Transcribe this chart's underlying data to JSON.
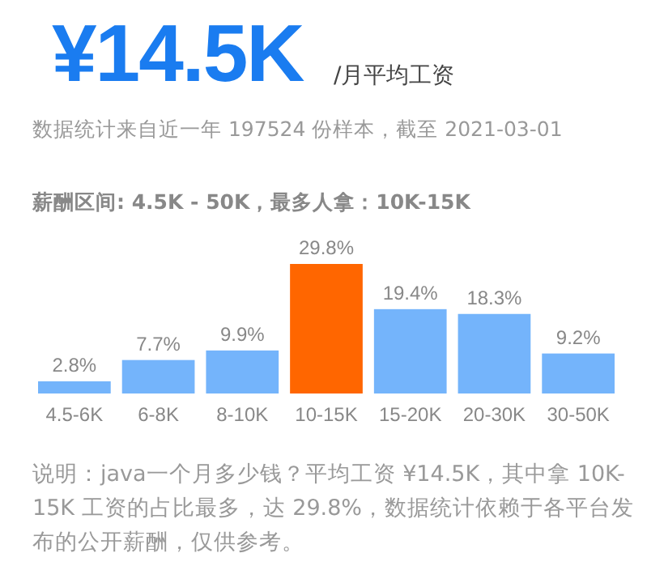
{
  "chart_data": {
    "type": "bar",
    "title": "¥14.5K",
    "subtitle": "/月平均工资",
    "annotations": [
      "数据统计来自近一年 197524 份样本，截至 2021-03-01",
      "薪酬区间: 4.5K - 50K，最多人拿：10K-15K",
      "说明：java一个月多少钱？平均工资 ¥14.5K，其中拿 10K-15K 工资的占比最多，达 29.8%，数据统计依赖于各平台发布的公开薪酬，仅供参考。"
    ],
    "categories": [
      "4.5-6K",
      "6-8K",
      "8-10K",
      "10-15K",
      "15-20K",
      "20-30K",
      "30-50K"
    ],
    "values": [
      2.8,
      7.7,
      9.9,
      29.8,
      19.4,
      18.3,
      9.2
    ],
    "value_labels": [
      "2.8%",
      "7.7%",
      "9.9%",
      "29.8%",
      "19.4%",
      "18.3%",
      "9.2%"
    ],
    "colors": [
      "#74b4fb",
      "#74b4fb",
      "#74b4fb",
      "#ff6600",
      "#74b4fb",
      "#74b4fb",
      "#74b4fb"
    ]
  }
}
